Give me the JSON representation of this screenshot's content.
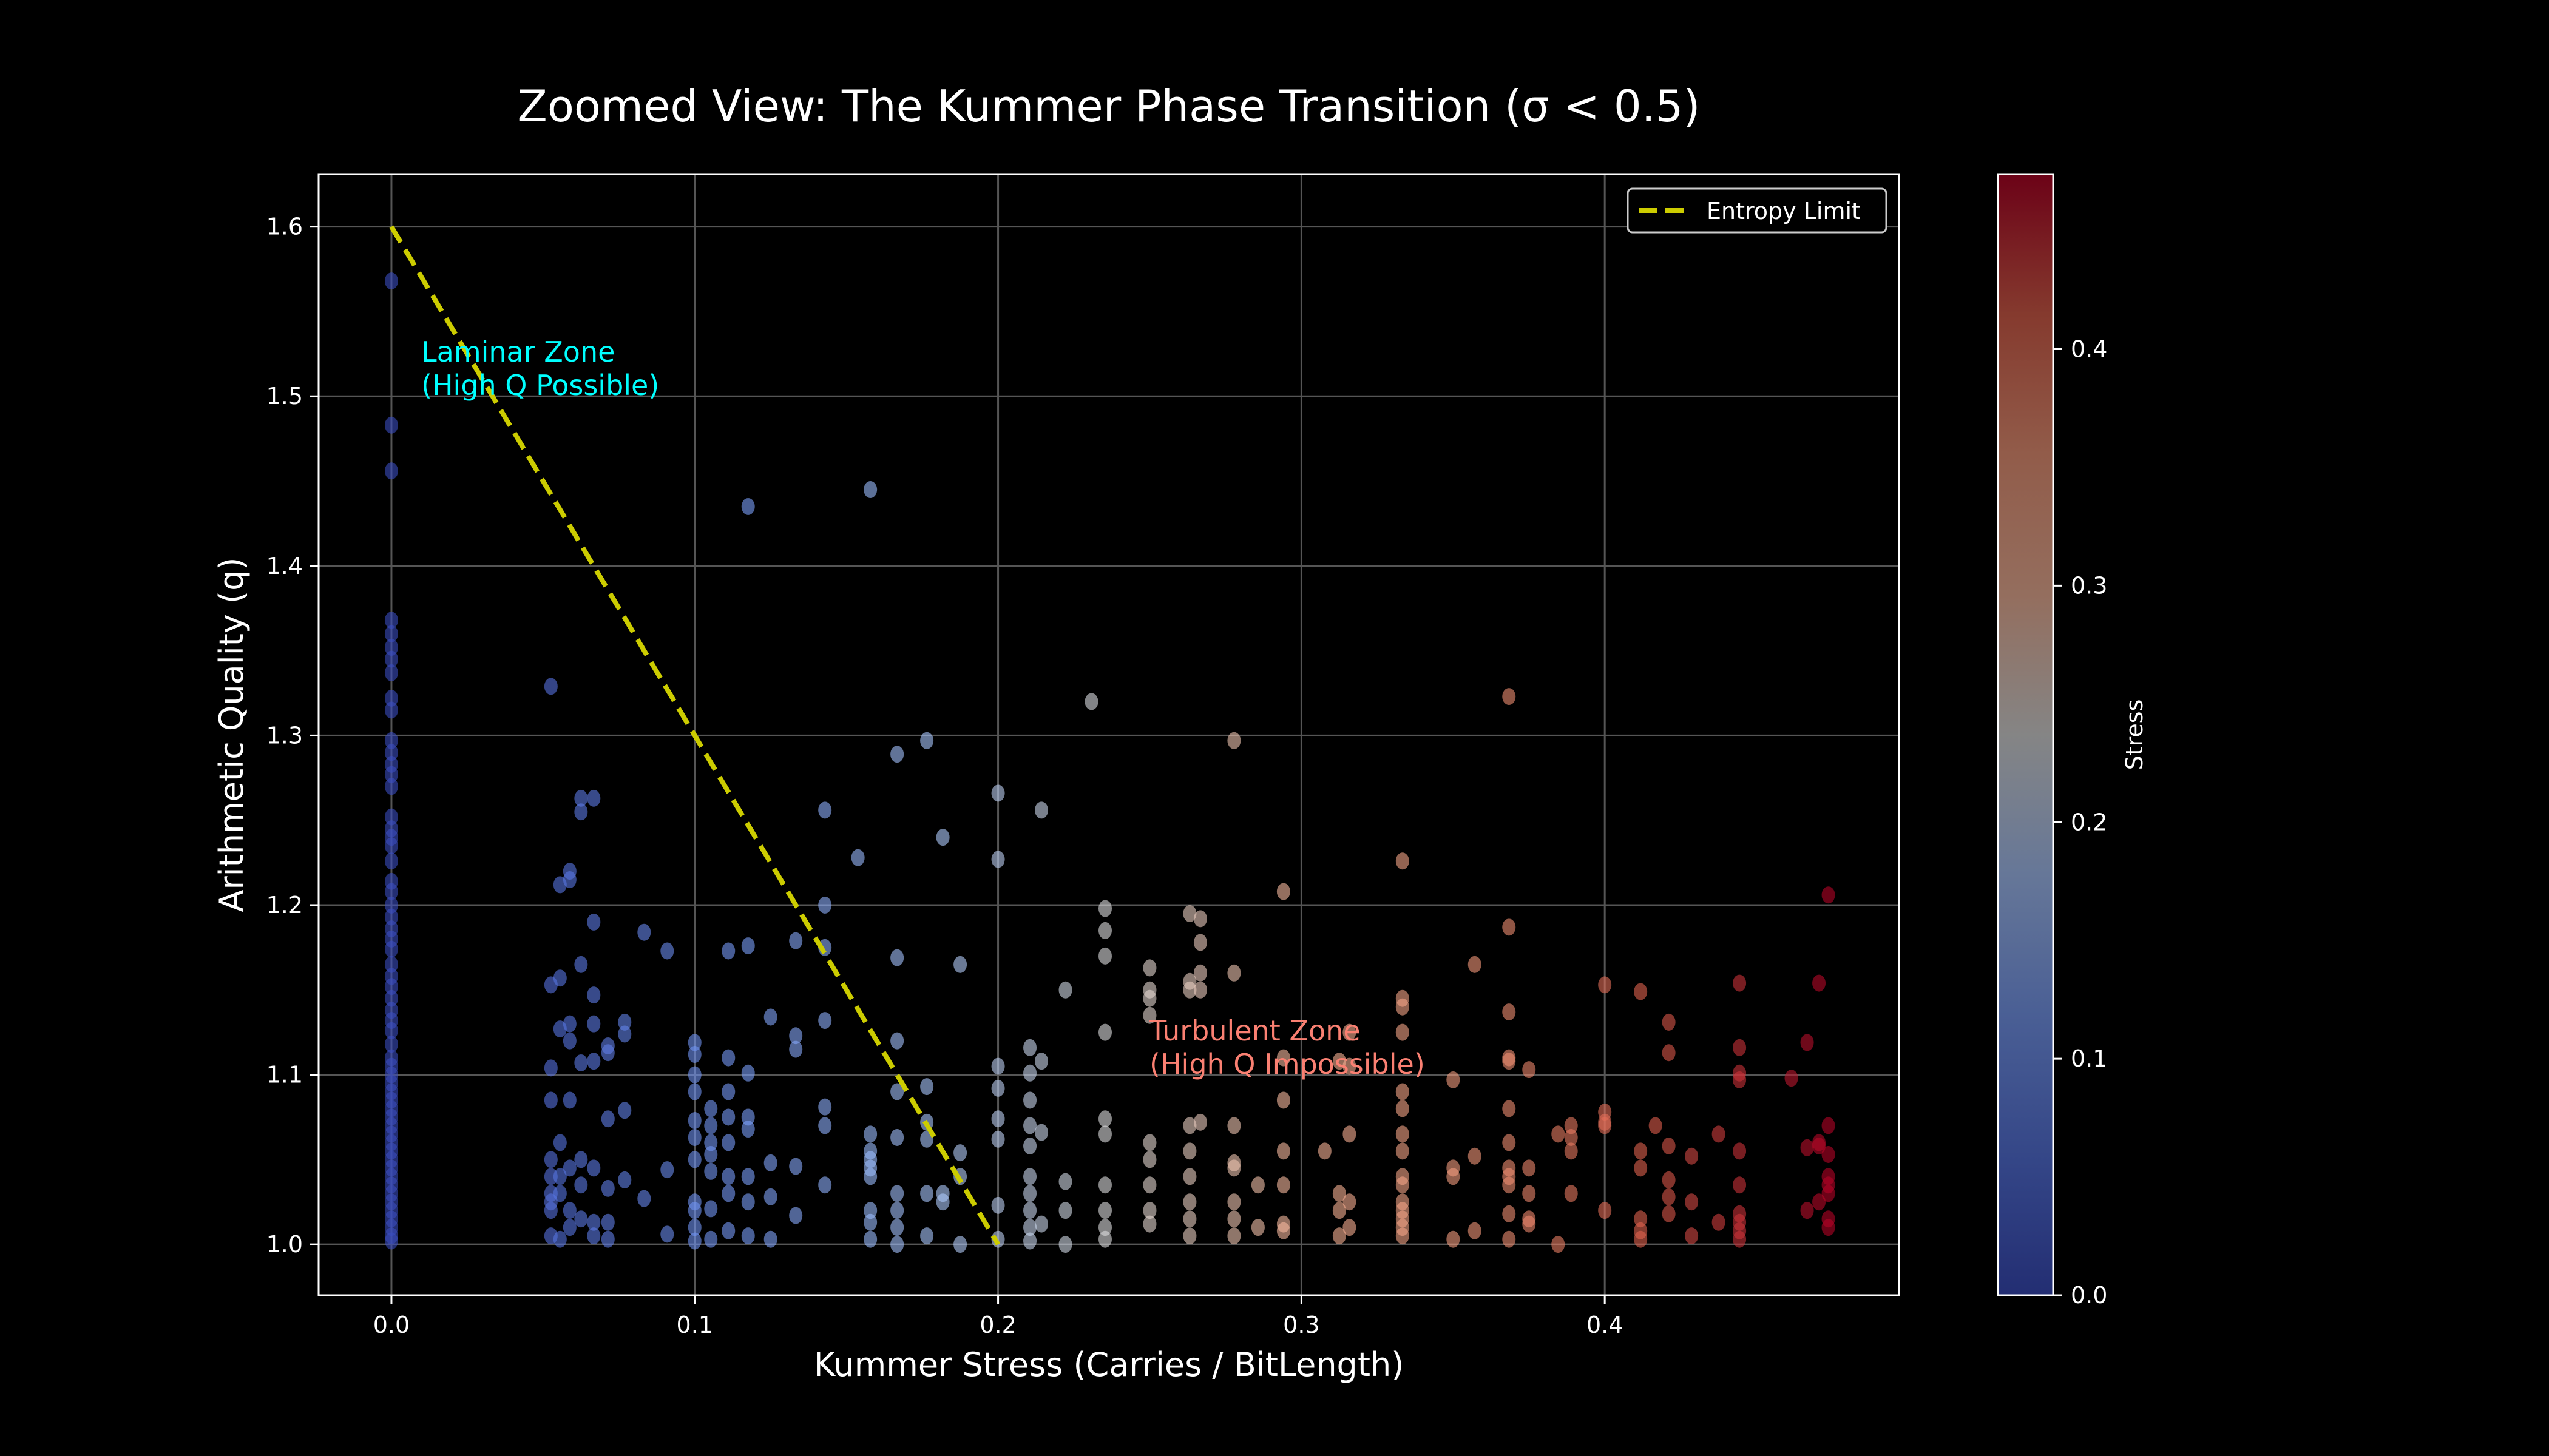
{
  "chart_data": {
    "type": "scatter",
    "title": "Zoomed View: The Kummer Phase Transition (σ < 0.5)",
    "xlabel": "Kummer Stress (Carries / BitLength)",
    "ylabel": "Arithmetic Quality (q)",
    "xlim": [
      -0.024,
      0.497
    ],
    "ylim": [
      0.97,
      1.631
    ],
    "xticks": [
      0.0,
      0.1,
      0.2,
      0.3,
      0.4
    ],
    "xtick_labels": [
      "0.0",
      "0.1",
      "0.2",
      "0.3",
      "0.4"
    ],
    "yticks": [
      1.0,
      1.1,
      1.2,
      1.3,
      1.4,
      1.5,
      1.6
    ],
    "ytick_labels": [
      "1.0",
      "1.1",
      "1.2",
      "1.3",
      "1.4",
      "1.5",
      "1.6"
    ],
    "grid": true,
    "background": "#000000",
    "colormap": "coolwarm",
    "colormap_stops": [
      "#3b4cc0",
      "#5977e3",
      "#7b9ff9",
      "#aac7fd",
      "#dddddd",
      "#f7b89c",
      "#f49a7b",
      "#de604d",
      "#b40426"
    ],
    "color_by": "x",
    "point_alpha": 0.6,
    "colorbar": {
      "label": "Stress",
      "range": [
        0.0,
        0.474
      ],
      "ticks": [
        0.0,
        0.1,
        0.2,
        0.3,
        0.4
      ],
      "tick_labels": [
        "0.0",
        "0.1",
        "0.2",
        "0.3",
        "0.4"
      ]
    },
    "reference_line": {
      "name": "Entropy Limit",
      "x": [
        0.0,
        0.2
      ],
      "y": [
        1.6,
        1.0
      ],
      "color": "#cccc00",
      "style": "dashed"
    },
    "legend": {
      "position": "top-right",
      "entries": [
        "Entropy Limit"
      ]
    },
    "annotations": [
      {
        "lines": [
          "Laminar Zone",
          "(High Q Possible)"
        ],
        "x": 0.01,
        "y": 1.53,
        "color": "#00ffff"
      },
      {
        "lines": [
          "Turbulent Zone",
          "(High Q Impossible)"
        ],
        "x": 0.25,
        "y": 1.115,
        "color": "#fa8072"
      }
    ],
    "columns": [
      {
        "x": 0.0,
        "y": [
          1.568,
          1.483,
          1.456,
          1.368,
          1.36,
          1.352,
          1.345,
          1.337,
          1.322,
          1.315,
          1.297,
          1.29,
          1.283,
          1.277,
          1.27,
          1.252,
          1.245,
          1.24,
          1.235,
          1.226,
          1.214,
          1.208,
          1.2,
          1.193,
          1.186,
          1.18,
          1.174,
          1.165,
          1.158,
          1.152,
          1.145,
          1.138,
          1.132,
          1.126,
          1.118,
          1.11,
          1.105,
          1.1,
          1.095,
          1.09,
          1.085,
          1.08,
          1.075,
          1.07,
          1.065,
          1.06,
          1.055,
          1.05,
          1.045,
          1.04,
          1.035,
          1.03,
          1.025,
          1.02,
          1.015,
          1.01,
          1.005,
          1.002
        ]
      },
      {
        "x": 0.0526,
        "y": [
          1.329,
          1.153,
          1.104,
          1.085,
          1.05,
          1.04,
          1.03,
          1.025,
          1.02,
          1.005
        ]
      },
      {
        "x": 0.0556,
        "y": [
          1.212,
          1.157,
          1.127,
          1.06,
          1.04,
          1.03,
          1.003
        ]
      },
      {
        "x": 0.0588,
        "y": [
          1.22,
          1.215,
          1.13,
          1.12,
          1.085,
          1.045,
          1.02,
          1.01
        ]
      },
      {
        "x": 0.0625,
        "y": [
          1.263,
          1.255,
          1.165,
          1.107,
          1.05,
          1.035,
          1.015
        ]
      },
      {
        "x": 0.0667,
        "y": [
          1.263,
          1.19,
          1.147,
          1.13,
          1.108,
          1.045,
          1.013,
          1.005
        ]
      },
      {
        "x": 0.0714,
        "y": [
          1.117,
          1.113,
          1.074,
          1.033,
          1.013,
          1.003
        ]
      },
      {
        "x": 0.0769,
        "y": [
          1.131,
          1.124,
          1.079,
          1.038
        ]
      },
      {
        "x": 0.0833,
        "y": [
          1.184,
          1.027
        ]
      },
      {
        "x": 0.0909,
        "y": [
          1.173,
          1.044,
          1.006
        ]
      },
      {
        "x": 0.1,
        "y": [
          1.119,
          1.112,
          1.1,
          1.09,
          1.073,
          1.063,
          1.05,
          1.025,
          1.02,
          1.01,
          1.002
        ]
      },
      {
        "x": 0.1053,
        "y": [
          1.08,
          1.07,
          1.06,
          1.053,
          1.043,
          1.021,
          1.003
        ]
      },
      {
        "x": 0.1111,
        "y": [
          1.173,
          1.11,
          1.09,
          1.075,
          1.06,
          1.04,
          1.03,
          1.008
        ]
      },
      {
        "x": 0.1176,
        "y": [
          1.435,
          1.176,
          1.101,
          1.075,
          1.068,
          1.04,
          1.025,
          1.005
        ]
      },
      {
        "x": 0.125,
        "y": [
          1.134,
          1.048,
          1.028,
          1.003
        ]
      },
      {
        "x": 0.1333,
        "y": [
          1.179,
          1.123,
          1.115,
          1.046,
          1.017
        ]
      },
      {
        "x": 0.1429,
        "y": [
          1.256,
          1.2,
          1.175,
          1.132,
          1.081,
          1.07,
          1.035
        ]
      },
      {
        "x": 0.1538,
        "y": [
          1.228
        ]
      },
      {
        "x": 0.1579,
        "y": [
          1.445,
          1.065,
          1.055,
          1.05,
          1.045,
          1.04,
          1.02,
          1.013,
          1.003
        ]
      },
      {
        "x": 0.1667,
        "y": [
          1.289,
          1.169,
          1.12,
          1.09,
          1.063,
          1.03,
          1.02,
          1.01,
          1.0
        ]
      },
      {
        "x": 0.1765,
        "y": [
          1.297,
          1.093,
          1.072,
          1.062,
          1.03,
          1.005
        ]
      },
      {
        "x": 0.1818,
        "y": [
          1.24,
          1.03,
          1.025
        ]
      },
      {
        "x": 0.1875,
        "y": [
          1.165,
          1.054,
          1.04,
          1.0
        ]
      },
      {
        "x": 0.2,
        "y": [
          1.266,
          1.227,
          1.105,
          1.092,
          1.074,
          1.062,
          1.023,
          1.003
        ]
      },
      {
        "x": 0.2105,
        "y": [
          1.116,
          1.101,
          1.085,
          1.07,
          1.058,
          1.04,
          1.03,
          1.02,
          1.01,
          1.002
        ]
      },
      {
        "x": 0.2143,
        "y": [
          1.256,
          1.108,
          1.066,
          1.012
        ]
      },
      {
        "x": 0.2222,
        "y": [
          1.15,
          1.037,
          1.02,
          1.0
        ]
      },
      {
        "x": 0.2308,
        "y": [
          1.32
        ]
      },
      {
        "x": 0.2353,
        "y": [
          1.198,
          1.185,
          1.17,
          1.125,
          1.074,
          1.065,
          1.035,
          1.02,
          1.01,
          1.003
        ]
      },
      {
        "x": 0.25,
        "y": [
          1.163,
          1.15,
          1.145,
          1.135,
          1.06,
          1.05,
          1.035,
          1.02,
          1.012
        ]
      },
      {
        "x": 0.2632,
        "y": [
          1.195,
          1.155,
          1.15,
          1.07,
          1.055,
          1.04,
          1.025,
          1.015,
          1.005
        ]
      },
      {
        "x": 0.2667,
        "y": [
          1.192,
          1.178,
          1.16,
          1.15,
          1.072
        ]
      },
      {
        "x": 0.2778,
        "y": [
          1.297,
          1.16,
          1.07,
          1.048,
          1.045,
          1.025,
          1.015,
          1.005
        ]
      },
      {
        "x": 0.2857,
        "y": [
          1.035,
          1.01
        ]
      },
      {
        "x": 0.2941,
        "y": [
          1.208,
          1.11,
          1.085,
          1.055,
          1.035,
          1.012,
          1.008
        ]
      },
      {
        "x": 0.3077,
        "y": [
          1.055
        ]
      },
      {
        "x": 0.3125,
        "y": [
          1.108,
          1.03,
          1.02,
          1.005
        ]
      },
      {
        "x": 0.3158,
        "y": [
          1.125,
          1.105,
          1.065,
          1.025,
          1.01
        ]
      },
      {
        "x": 0.3333,
        "y": [
          1.226,
          1.145,
          1.14,
          1.125,
          1.09,
          1.08,
          1.065,
          1.055,
          1.04,
          1.035,
          1.025,
          1.02,
          1.015,
          1.01,
          1.005
        ]
      },
      {
        "x": 0.35,
        "y": [
          1.097,
          1.045,
          1.04,
          1.003
        ]
      },
      {
        "x": 0.3571,
        "y": [
          1.165,
          1.052,
          1.008
        ]
      },
      {
        "x": 0.3684,
        "y": [
          1.323,
          1.187,
          1.137,
          1.11,
          1.108,
          1.08,
          1.06,
          1.045,
          1.04,
          1.035,
          1.018,
          1.003
        ]
      },
      {
        "x": 0.375,
        "y": [
          1.103,
          1.045,
          1.03,
          1.015,
          1.012
        ]
      },
      {
        "x": 0.3846,
        "y": [
          1.065,
          1.0
        ]
      },
      {
        "x": 0.3889,
        "y": [
          1.07,
          1.063,
          1.055,
          1.03
        ]
      },
      {
        "x": 0.4,
        "y": [
          1.153,
          1.078,
          1.072,
          1.07,
          1.02
        ]
      },
      {
        "x": 0.4118,
        "y": [
          1.149,
          1.055,
          1.045,
          1.015,
          1.008,
          1.003
        ]
      },
      {
        "x": 0.4167,
        "y": [
          1.07
        ]
      },
      {
        "x": 0.4211,
        "y": [
          1.131,
          1.113,
          1.058,
          1.038,
          1.028,
          1.018
        ]
      },
      {
        "x": 0.4286,
        "y": [
          1.052,
          1.025,
          1.005
        ]
      },
      {
        "x": 0.4375,
        "y": [
          1.065,
          1.013
        ]
      },
      {
        "x": 0.4444,
        "y": [
          1.154,
          1.116,
          1.101,
          1.097,
          1.055,
          1.035,
          1.018,
          1.013,
          1.008,
          1.003
        ]
      },
      {
        "x": 0.4615,
        "y": [
          1.098
        ]
      },
      {
        "x": 0.4667,
        "y": [
          1.119,
          1.057,
          1.02
        ]
      },
      {
        "x": 0.4706,
        "y": [
          1.154,
          1.06,
          1.058,
          1.025
        ]
      },
      {
        "x": 0.4737,
        "y": [
          1.206,
          1.07,
          1.053,
          1.04,
          1.035,
          1.03,
          1.015,
          1.01
        ]
      }
    ]
  }
}
